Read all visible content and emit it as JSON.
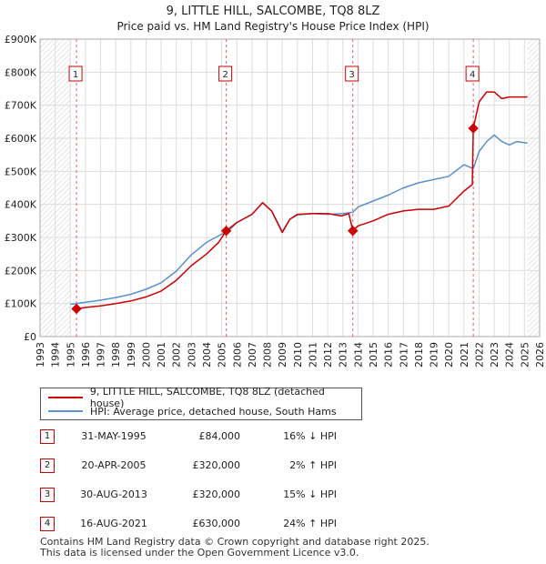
{
  "chart_data": {
    "type": "line",
    "title": "9, LITTLE HILL, SALCOMBE, TQ8 8LZ",
    "subtitle": "Price paid vs. HM Land Registry's House Price Index (HPI)",
    "xlabel": "",
    "ylabel": "",
    "xlim": [
      1993,
      2026
    ],
    "ylim": [
      0,
      900000
    ],
    "x_ticks": [
      "1993",
      "1994",
      "1995",
      "1996",
      "1997",
      "1998",
      "1999",
      "2000",
      "2001",
      "2002",
      "2003",
      "2004",
      "2005",
      "2006",
      "2007",
      "2008",
      "2009",
      "2010",
      "2011",
      "2012",
      "2013",
      "2014",
      "2015",
      "2016",
      "2017",
      "2018",
      "2019",
      "2020",
      "2021",
      "2022",
      "2023",
      "2024",
      "2025",
      "2026"
    ],
    "y_ticks": [
      {
        "value": 0,
        "label": "£0"
      },
      {
        "value": 100000,
        "label": "£100K"
      },
      {
        "value": 200000,
        "label": "£200K"
      },
      {
        "value": 300000,
        "label": "£300K"
      },
      {
        "value": 400000,
        "label": "£400K"
      },
      {
        "value": 500000,
        "label": "£500K"
      },
      {
        "value": 600000,
        "label": "£600K"
      },
      {
        "value": 700000,
        "label": "£700K"
      },
      {
        "value": 800000,
        "label": "£800K"
      },
      {
        "value": 900000,
        "label": "£900K"
      }
    ],
    "series": [
      {
        "name": "9, LITTLE HILL, SALCOMBE, TQ8 8LZ (detached house)",
        "color": "#cc0000",
        "x": [
          1995.41,
          1996,
          1997,
          1998,
          1999,
          2000,
          2001,
          2002,
          2003,
          2004,
          2004.8,
          2005.3,
          2006,
          2007,
          2007.7,
          2008.3,
          2009.0,
          2009.5,
          2010,
          2011,
          2012,
          2012.9,
          2013.4,
          2013.66,
          2014,
          2015,
          2016,
          2017,
          2018,
          2019,
          2020,
          2021.0,
          2021.55,
          2021.62,
          2022,
          2022.5,
          2023,
          2023.5,
          2024,
          2024.5,
          2025.2
        ],
        "values": [
          84000,
          88000,
          93000,
          100000,
          108000,
          120000,
          138000,
          170000,
          215000,
          250000,
          285000,
          320000,
          345000,
          370000,
          405000,
          380000,
          315000,
          355000,
          370000,
          372000,
          372000,
          365000,
          372000,
          320000,
          335000,
          350000,
          370000,
          380000,
          385000,
          385000,
          395000,
          440000,
          460000,
          630000,
          710000,
          740000,
          740000,
          720000,
          725000,
          725000,
          725000
        ]
      },
      {
        "name": "HPI: Average price, detached house, South Hams",
        "color": "#5b8fd0",
        "x": [
          1995.0,
          1995.41,
          1996,
          1997,
          1998,
          1999,
          2000,
          2001,
          2002,
          2003,
          2004,
          2005,
          2005.3,
          2006,
          2007,
          2007.7,
          2008.3,
          2009.0,
          2009.5,
          2010,
          2011,
          2012,
          2013,
          2013.66,
          2014,
          2015,
          2016,
          2017,
          2018,
          2019,
          2020,
          2021,
          2021.62,
          2022,
          2022.5,
          2023,
          2023.5,
          2024,
          2024.5,
          2025.2
        ],
        "values": [
          98000,
          100000,
          104000,
          110000,
          118000,
          128000,
          143000,
          163000,
          198000,
          248000,
          285000,
          310000,
          313000,
          345000,
          370000,
          405000,
          380000,
          318000,
          355000,
          368000,
          372000,
          370000,
          372000,
          376000,
          392000,
          410000,
          428000,
          450000,
          465000,
          475000,
          485000,
          520000,
          508000,
          560000,
          590000,
          610000,
          590000,
          580000,
          590000,
          585000
        ]
      }
    ],
    "transactions": [
      {
        "num": "1",
        "x": 1995.41,
        "price": 84000
      },
      {
        "num": "2",
        "x": 2005.3,
        "price": 320000
      },
      {
        "num": "3",
        "x": 2013.66,
        "price": 320000
      },
      {
        "num": "4",
        "x": 2021.62,
        "price": 630000
      }
    ]
  },
  "legend": {
    "property_label": "9, LITTLE HILL, SALCOMBE, TQ8 8LZ (detached house)",
    "hpi_label": "HPI: Average price, detached house, South Hams",
    "property_color": "#cc0000",
    "hpi_color": "#5b8fd0"
  },
  "table": {
    "rows": [
      {
        "num": "1",
        "date": "31-MAY-1995",
        "price": "£84,000",
        "hpi": "16% ↓ HPI"
      },
      {
        "num": "2",
        "date": "20-APR-2005",
        "price": "£320,000",
        "hpi": "2% ↑ HPI"
      },
      {
        "num": "3",
        "date": "30-AUG-2013",
        "price": "£320,000",
        "hpi": "15% ↓ HPI"
      },
      {
        "num": "4",
        "date": "16-AUG-2021",
        "price": "£630,000",
        "hpi": "24% ↑ HPI"
      }
    ]
  },
  "footer": {
    "line1": "Contains HM Land Registry data © Crown copyright and database right 2025.",
    "line2": "This data is licensed under the Open Government Licence v3.0."
  }
}
